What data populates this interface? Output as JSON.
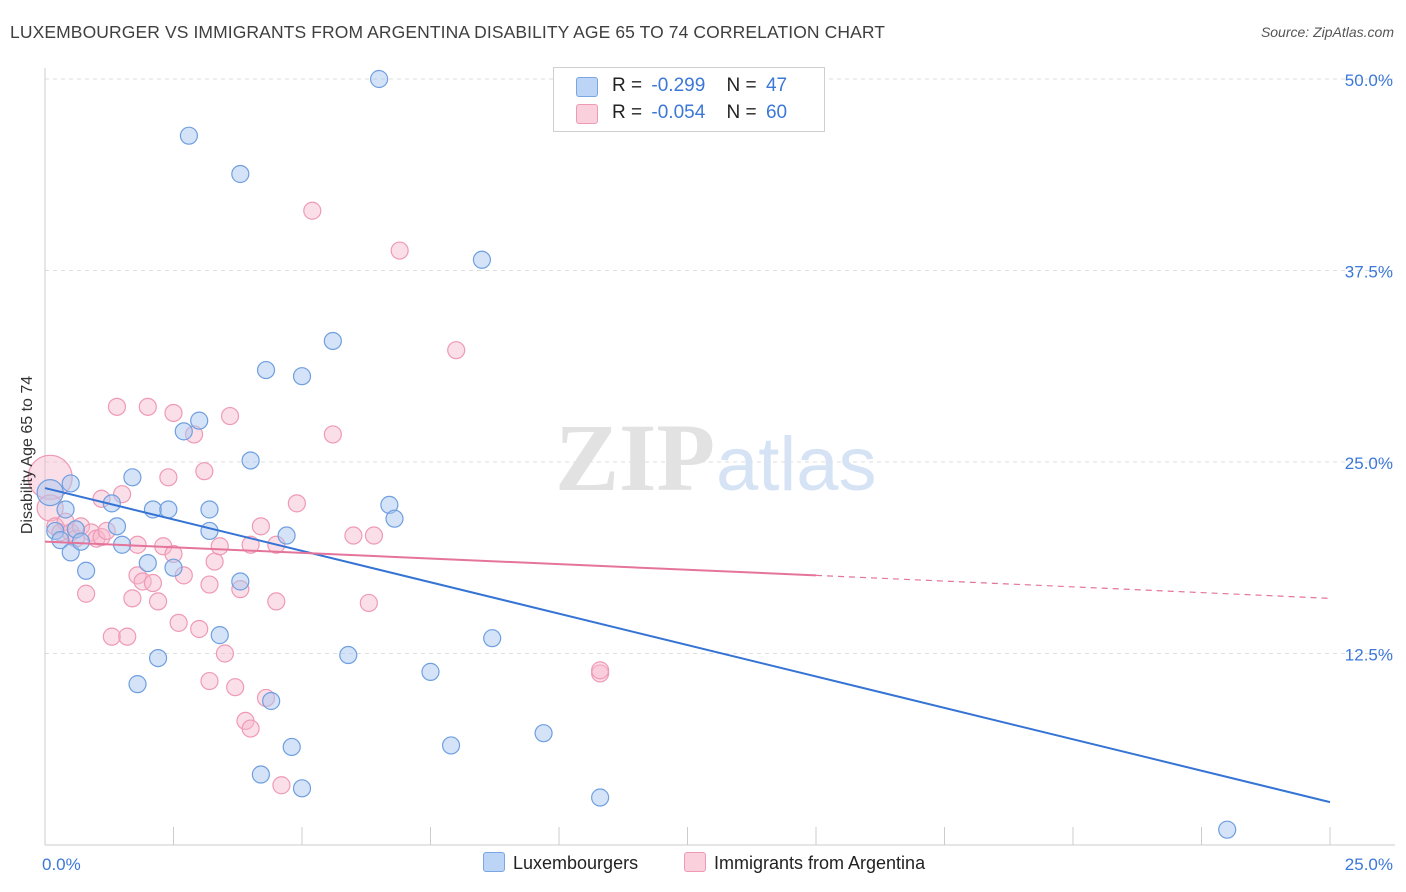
{
  "title": "LUXEMBOURGER VS IMMIGRANTS FROM ARGENTINA DISABILITY AGE 65 TO 74 CORRELATION CHART",
  "source": "Source: ZipAtlas.com",
  "watermark": {
    "zip": "ZIP",
    "atlas": "atlas"
  },
  "legend_stats": [
    {
      "r_label": "R =",
      "r_value": "-0.299",
      "n_label": "N =",
      "n_value": "47"
    },
    {
      "r_label": "R =",
      "r_value": "-0.054",
      "n_label": "N =",
      "n_value": "60"
    }
  ],
  "bottom_legend": [
    "Luxembourgers",
    "Immigrants from Argentina"
  ],
  "chart_data": {
    "type": "scatter",
    "title": "LUXEMBOURGER VS IMMIGRANTS FROM ARGENTINA DISABILITY AGE 65 TO 74 CORRELATION CHART",
    "xlabel": "",
    "ylabel": "Disability Age 65 to 74",
    "xlim": [
      0,
      25
    ],
    "ylim": [
      0,
      50
    ],
    "x_tick_labels": [
      "0.0%",
      "25.0%"
    ],
    "y_tick_values": [
      12.5,
      25.0,
      37.5,
      50.0
    ],
    "y_tick_labels": [
      "12.5%",
      "25.0%",
      "37.5%",
      "50.0%"
    ],
    "grid": true,
    "legend_position": "top-center",
    "colors": {
      "luxembourgers": "#a9c8f0",
      "luxembourgers_line": "#3574d4",
      "argentina": "#f7b8cb",
      "argentina_line": "#e5749a"
    },
    "series": [
      {
        "name": "Luxembourgers",
        "trend": {
          "x": [
            0,
            25
          ],
          "y": [
            23.3,
            2.8
          ]
        },
        "points": [
          [
            0.1,
            23.0
          ],
          [
            0.2,
            20.5
          ],
          [
            0.3,
            19.9
          ],
          [
            0.4,
            21.9
          ],
          [
            0.5,
            19.1
          ],
          [
            0.5,
            23.6
          ],
          [
            0.6,
            20.6
          ],
          [
            0.7,
            19.8
          ],
          [
            0.8,
            17.9
          ],
          [
            1.3,
            22.3
          ],
          [
            1.4,
            20.8
          ],
          [
            1.5,
            19.6
          ],
          [
            1.7,
            24.0
          ],
          [
            1.8,
            10.5
          ],
          [
            2.0,
            18.4
          ],
          [
            2.1,
            21.9
          ],
          [
            2.2,
            12.2
          ],
          [
            2.4,
            21.9
          ],
          [
            2.5,
            18.1
          ],
          [
            2.7,
            27.0
          ],
          [
            2.8,
            46.3
          ],
          [
            3.0,
            27.7
          ],
          [
            3.2,
            21.9
          ],
          [
            3.2,
            20.5
          ],
          [
            3.4,
            13.7
          ],
          [
            3.8,
            17.2
          ],
          [
            3.8,
            43.8
          ],
          [
            4.0,
            25.1
          ],
          [
            4.3,
            31.0
          ],
          [
            4.2,
            4.6
          ],
          [
            4.4,
            9.4
          ],
          [
            4.7,
            20.2
          ],
          [
            4.8,
            6.4
          ],
          [
            5.0,
            3.7
          ],
          [
            5.0,
            30.6
          ],
          [
            5.6,
            32.9
          ],
          [
            5.9,
            12.4
          ],
          [
            6.5,
            50.0
          ],
          [
            6.7,
            22.2
          ],
          [
            6.8,
            21.3
          ],
          [
            7.5,
            11.3
          ],
          [
            7.9,
            6.5
          ],
          [
            8.5,
            38.2
          ],
          [
            8.7,
            13.5
          ],
          [
            9.7,
            7.3
          ],
          [
            10.8,
            3.1
          ],
          [
            23.0,
            1.0
          ]
        ]
      },
      {
        "name": "Immigrants from Argentina",
        "trend": {
          "x": [
            0,
            15
          ],
          "y": [
            19.8,
            17.6
          ]
        },
        "trend_dashed": {
          "x": [
            15,
            25
          ],
          "y": [
            17.6,
            16.1
          ]
        },
        "points": [
          [
            0.1,
            24.0
          ],
          [
            0.1,
            22.0
          ],
          [
            0.2,
            20.8
          ],
          [
            0.3,
            20.4
          ],
          [
            0.4,
            21.1
          ],
          [
            0.5,
            20.4
          ],
          [
            0.6,
            20.0
          ],
          [
            0.7,
            20.8
          ],
          [
            0.8,
            16.4
          ],
          [
            0.9,
            20.4
          ],
          [
            1.0,
            20.0
          ],
          [
            1.1,
            20.1
          ],
          [
            1.1,
            22.6
          ],
          [
            1.2,
            20.5
          ],
          [
            1.3,
            13.6
          ],
          [
            1.4,
            28.6
          ],
          [
            1.5,
            22.9
          ],
          [
            1.6,
            13.6
          ],
          [
            1.7,
            16.1
          ],
          [
            1.8,
            19.6
          ],
          [
            1.8,
            17.6
          ],
          [
            1.9,
            17.2
          ],
          [
            2.0,
            28.6
          ],
          [
            2.1,
            17.1
          ],
          [
            2.2,
            15.9
          ],
          [
            2.3,
            19.5
          ],
          [
            2.4,
            24.0
          ],
          [
            2.5,
            19.0
          ],
          [
            2.5,
            28.2
          ],
          [
            2.6,
            14.5
          ],
          [
            2.7,
            17.6
          ],
          [
            2.9,
            26.8
          ],
          [
            3.0,
            14.1
          ],
          [
            3.1,
            24.4
          ],
          [
            3.2,
            17.0
          ],
          [
            3.2,
            10.7
          ],
          [
            3.3,
            18.5
          ],
          [
            3.4,
            19.5
          ],
          [
            3.5,
            12.5
          ],
          [
            3.6,
            28.0
          ],
          [
            3.7,
            10.3
          ],
          [
            3.8,
            16.7
          ],
          [
            3.9,
            8.1
          ],
          [
            4.0,
            19.6
          ],
          [
            4.0,
            7.6
          ],
          [
            4.2,
            20.8
          ],
          [
            4.3,
            9.6
          ],
          [
            4.5,
            19.6
          ],
          [
            4.5,
            15.9
          ],
          [
            4.6,
            3.9
          ],
          [
            4.9,
            22.3
          ],
          [
            5.2,
            41.4
          ],
          [
            5.6,
            26.8
          ],
          [
            6.0,
            20.2
          ],
          [
            6.3,
            15.8
          ],
          [
            6.4,
            20.2
          ],
          [
            6.9,
            38.8
          ],
          [
            8.0,
            32.3
          ],
          [
            10.8,
            11.2
          ],
          [
            10.8,
            11.4
          ]
        ]
      }
    ]
  }
}
